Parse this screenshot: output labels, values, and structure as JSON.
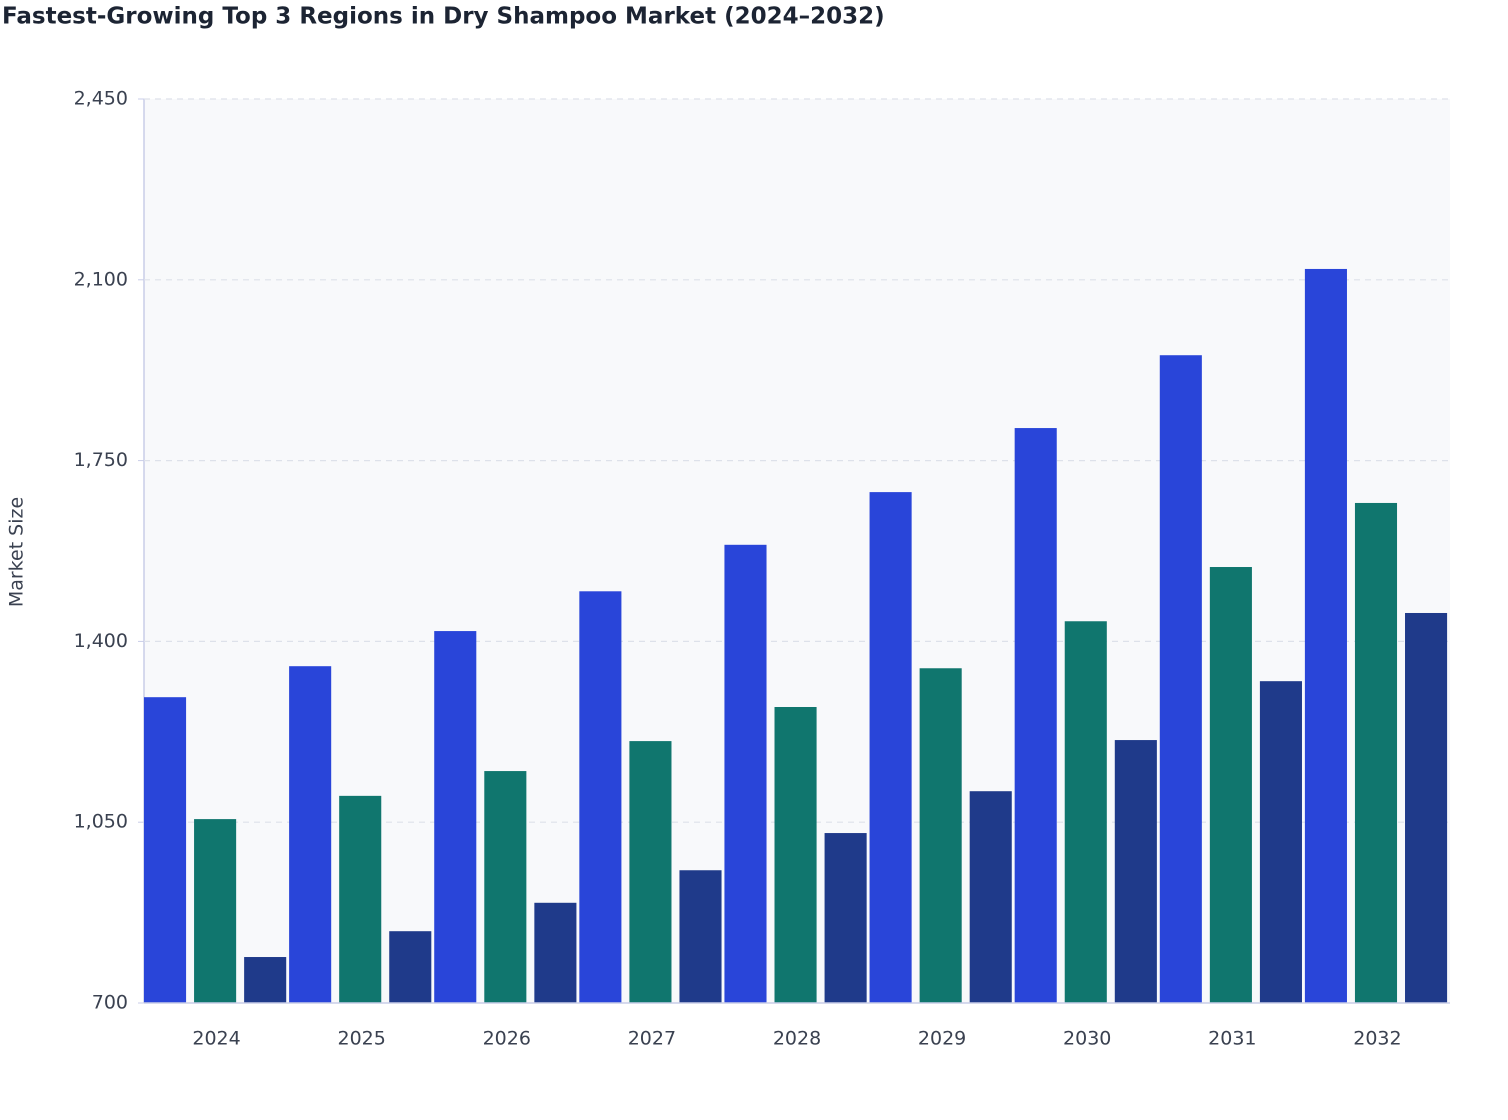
{
  "chart_data": {
    "type": "bar",
    "title": "Fastest-Growing Top 3 Regions in Dry Shampoo Market (2024–2032)",
    "y_label": "Market Size",
    "categories": [
      "2024",
      "2025",
      "2026",
      "2027",
      "2028",
      "2029",
      "2030",
      "2031",
      "2032"
    ],
    "series": [
      {
        "color": "#2945d9",
        "values": [
          1292,
          1352,
          1420,
          1497,
          1587,
          1689,
          1813,
          1954,
          2121
        ]
      },
      {
        "color": "#10766e",
        "values": [
          1056,
          1101,
          1149,
          1207,
          1273,
          1348,
          1439,
          1544,
          1668
        ]
      },
      {
        "color": "#1f3a8a",
        "values": [
          789,
          839,
          894,
          957,
          1029,
          1110,
          1209,
          1323,
          1455
        ]
      }
    ],
    "ylim": [
      700,
      2450
    ],
    "yticks": [
      700,
      {
        "value": 1050,
        "label": "1,050"
      },
      {
        "value": 1400,
        "label": "1,400"
      },
      {
        "value": 1750,
        "label": "1,750"
      },
      {
        "value": 2100,
        "label": "2,100"
      },
      {
        "value": 2450,
        "label": "2,450"
      }
    ],
    "grid": true
  }
}
